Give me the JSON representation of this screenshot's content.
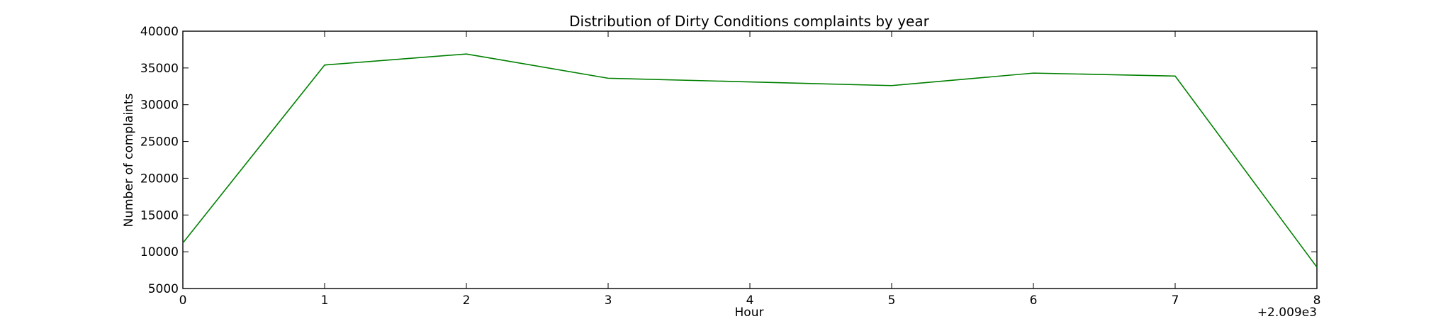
{
  "chart_data": {
    "type": "line",
    "title": "Distribution of  Dirty Conditions complaints by year",
    "xlabel": "Hour",
    "ylabel": "Number of complaints",
    "x_offset_label": "+2.009e3",
    "xlim": [
      0,
      8
    ],
    "ylim": [
      5000,
      40000
    ],
    "x_ticks": [
      "0",
      "1",
      "2",
      "3",
      "4",
      "5",
      "6",
      "7",
      "8"
    ],
    "y_ticks": [
      "5000",
      "10000",
      "15000",
      "20000",
      "25000",
      "30000",
      "35000",
      "40000"
    ],
    "grid": false,
    "series": [
      {
        "color": "#008000",
        "x": [
          0,
          1,
          2,
          3,
          4,
          5,
          6,
          7,
          8
        ],
        "values": [
          11200,
          35400,
          36900,
          33600,
          33100,
          32600,
          34300,
          33900,
          7900
        ]
      }
    ]
  }
}
